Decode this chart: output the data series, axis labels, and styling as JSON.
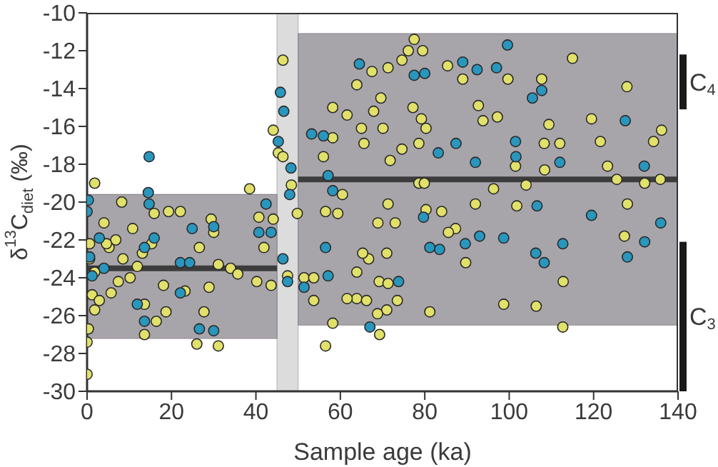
{
  "chart_data": {
    "type": "scatter",
    "xlabel": "Sample age (ka)",
    "ylabel": "δ$^{13}$C$_{diet}$ (‰)",
    "xlim": [
      0,
      140
    ],
    "xticks": [
      0,
      20,
      40,
      60,
      80,
      100,
      120,
      140
    ],
    "ylim": [
      -30,
      -10
    ],
    "yticks": [
      -30,
      -28,
      -26,
      -24,
      -22,
      -20,
      -18,
      -16,
      -14,
      -12,
      -10
    ],
    "grid": false,
    "bands": [
      {
        "axis": "x",
        "from": 45,
        "to": 50,
        "color": "#dcdcdc"
      }
    ],
    "annotations": [
      "C$_{4}$",
      "C$_{3}$"
    ],
    "series": [
      {
        "marker": "circle",
        "color": "#e1e06a",
        "x": [
          77.5,
          115,
          127.9,
          107.7,
          99.7,
          89,
          85.4,
          92.7,
          93.8,
          97.2,
          109.4,
          119.5,
          121.6,
          136.1,
          134.2,
          112,
          108.3,
          123.3,
          125.5,
          132.1,
          135.8,
          108.4,
          104,
          96.3,
          101.5,
          128,
          127.3,
          101.8,
          92,
          84,
          80.3,
          87.3,
          85.6,
          89.7,
          112.8,
          98.7,
          106.4,
          112.7,
          81.2,
          78.6,
          79.9,
          71.3,
          73,
          68.9,
          71,
          66.7,
          65.3,
          63.9,
          69.2,
          73.5,
          71,
          68.8,
          69.3,
          63.9,
          61.6,
          74.6,
          76.1,
          79.5,
          71.3,
          67.5,
          63.9,
          69.6,
          67.9,
          77.2,
          79.2,
          80.3,
          78.6,
          74.6,
          71.8,
          65.6,
          70.1,
          61.6,
          65,
          71.3,
          66.2,
          46.4,
          0,
          0,
          0.3,
          1.8,
          8.2,
          13.6,
          38.5,
          26,
          31.1,
          27.7,
          28.9,
          18.7,
          16.4,
          22.1,
          19.3,
          29.4,
          30,
          26.6,
          31.1,
          34,
          35.7,
          15.9,
          13.1,
          7.4,
          5.2,
          4,
          8.5,
          10.8,
          1.8,
          1.2,
          2.9,
          5.7,
          13.6,
          18.1,
          23.2,
          40.7,
          44.1,
          41.9,
          40.2,
          43.6,
          44.1,
          45.3,
          46.4,
          48.4,
          49.8,
          47.5,
          15.3,
          6.8,
          10.2,
          11.9,
          0.6,
          0.6,
          1.8,
          4.6,
          51.4,
          53.7,
          56.5,
          58.2,
          53.7,
          56.5,
          59.4,
          56,
          58.2,
          60.5,
          58.2
        ],
        "values": [
          -11.4,
          -12.4,
          -13.9,
          -13.5,
          -13.5,
          -13.5,
          -12.8,
          -14.9,
          -15.7,
          -15.5,
          -15.9,
          -15.6,
          -16.8,
          -16.2,
          -16.8,
          -16.9,
          -16.9,
          -18.1,
          -18.8,
          -19.0,
          -18.8,
          -18.3,
          -19.1,
          -19.3,
          -18.1,
          -20.1,
          -21.8,
          -20.2,
          -20.1,
          -20.5,
          -20.4,
          -21.4,
          -21.6,
          -23.2,
          -24.2,
          -25.4,
          -25.5,
          -26.6,
          -25.8,
          -19.0,
          -19.0,
          -20.1,
          -21.1,
          -21.1,
          -22.7,
          -23.0,
          -22.7,
          -23.7,
          -24.2,
          -25.2,
          -25.7,
          -25.9,
          -27.0,
          -25.1,
          -25.1,
          -12.5,
          -12.0,
          -12.0,
          -12.9,
          -13.1,
          -13.8,
          -14.5,
          -15.2,
          -15.0,
          -15.6,
          -16.1,
          -16.9,
          -17.2,
          -17.8,
          -16.9,
          -16.1,
          -15.4,
          -16.1,
          -24.3,
          -25.2,
          -12.5,
          -29.1,
          -27.4,
          -26.7,
          -19.0,
          -20.0,
          -27.0,
          -19.3,
          -27.5,
          -27.6,
          -25.8,
          -24.5,
          -25.8,
          -26.3,
          -20.5,
          -20.5,
          -20.9,
          -21.6,
          -22.4,
          -23.3,
          -23.5,
          -23.8,
          -20.6,
          -22.7,
          -24.2,
          -22.4,
          -21.1,
          -23.0,
          -21.4,
          -23.7,
          -24.9,
          -25.2,
          -24.8,
          -25.4,
          -24.4,
          -24.7,
          -20.8,
          -20.9,
          -22.4,
          -24.2,
          -24.4,
          -16.2,
          -17.4,
          -17.6,
          -19.1,
          -20.6,
          -23.9,
          -22.2,
          -22.0,
          -24.0,
          -23.4,
          -22.2,
          -23.0,
          -25.7,
          -22.2,
          -24.0,
          -25.2,
          -27.6,
          -26.4,
          -24.0,
          -20.5,
          -20.6,
          -17.6,
          -16.6,
          -19.6,
          -15.0
        ]
      },
      {
        "marker": "circle",
        "color": "#2996bd",
        "x": [
          99.6,
          64.5,
          89,
          92.4,
          97,
          77.5,
          80,
          107.7,
          105.5,
          127.5,
          101.5,
          87.4,
          83.2,
          101.6,
          92,
          112,
          132,
          106.6,
          119.5,
          135.9,
          132.1,
          128,
          112.7,
          108.3,
          106.3,
          98.7,
          93,
          89.6,
          83.5,
          81.2,
          73.8,
          67,
          79.7,
          14.7,
          14.5,
          14.7,
          0.3,
          0,
          2.9,
          0.6,
          1.2,
          4,
          22.1,
          24.3,
          24.9,
          30,
          22.1,
          13.6,
          11.9,
          15.9,
          13.6,
          26.6,
          30,
          42.4,
          40.7,
          43.6,
          45.8,
          46.6,
          45.3,
          48.3,
          48,
          46.4,
          47.5,
          51.4,
          53.2,
          56,
          56.5,
          57.1,
          57.1,
          58.2
        ],
        "values": [
          -11.7,
          -12.7,
          -12.6,
          -13.0,
          -12.9,
          -13.3,
          -13.2,
          -14.1,
          -14.5,
          -15.7,
          -16.8,
          -16.9,
          -17.4,
          -17.6,
          -17.9,
          -17.9,
          -18.1,
          -20.2,
          -20.7,
          -21.1,
          -22.1,
          -22.9,
          -22.2,
          -23.2,
          -22.7,
          -21.9,
          -21.8,
          -22.2,
          -22.5,
          -22.4,
          -24.2,
          -26.6,
          -20.8,
          -17.6,
          -19.5,
          -20.1,
          -19.9,
          -20.5,
          -21.9,
          -22.9,
          -23.9,
          -23.5,
          -23.2,
          -23.2,
          -21.4,
          -21.3,
          -24.8,
          -26.3,
          -25.4,
          -21.9,
          -22.4,
          -26.7,
          -26.8,
          -20.1,
          -21.6,
          -21.6,
          -14.2,
          -15.2,
          -16.8,
          -18.2,
          -19.6,
          -23.0,
          -24.2,
          -24.5,
          -16.4,
          -16.5,
          -22.4,
          -23.9,
          -18.6,
          -19.4
        ]
      },
      {
        "type": "line",
        "color": "#3c3c3c",
        "x": [
          0,
          45
        ],
        "values": [
          -23.5,
          -23.5
        ],
        "lower": [
          -27.2,
          -27.2
        ],
        "upper": [
          -19.6,
          -19.6
        ]
      },
      {
        "type": "line",
        "color": "#3c3c3c",
        "x": [
          50,
          140
        ],
        "values": [
          -18.8,
          -18.8
        ],
        "lower": [
          -26.5,
          -26.5
        ],
        "upper": [
          -11.1,
          -11.1
        ]
      }
    ]
  }
}
